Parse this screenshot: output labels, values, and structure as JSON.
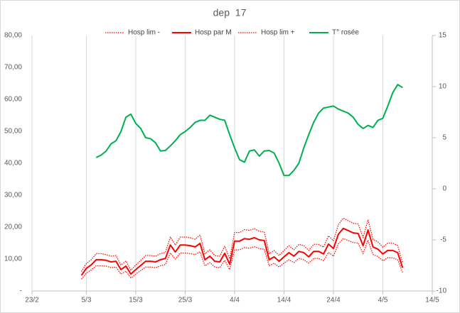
{
  "chart_data": {
    "type": "line",
    "title": "dep  17",
    "x": [
      "4/3",
      "5/3",
      "6/3",
      "7/3",
      "8/3",
      "9/3",
      "10/3",
      "11/3",
      "12/3",
      "13/3",
      "14/3",
      "15/3",
      "16/3",
      "17/3",
      "18/3",
      "19/3",
      "20/3",
      "21/3",
      "22/3",
      "23/3",
      "24/3",
      "25/3",
      "26/3",
      "27/3",
      "28/3",
      "29/3",
      "30/3",
      "31/3",
      "1/4",
      "2/4",
      "3/4",
      "4/4",
      "5/4",
      "6/4",
      "7/4",
      "8/4",
      "9/4",
      "10/4",
      "11/4",
      "12/4",
      "13/4",
      "14/4",
      "15/4",
      "16/4",
      "17/4",
      "18/4",
      "19/4",
      "20/4",
      "21/4",
      "22/4",
      "23/4",
      "24/4",
      "25/4",
      "26/4",
      "27/4",
      "28/4",
      "29/4",
      "30/4",
      "1/5",
      "2/5",
      "3/5",
      "4/5",
      "5/5",
      "6/5",
      "7/5",
      "8/5"
    ],
    "xlim": [
      "23/2",
      "14/5"
    ],
    "xticks": [
      "23/2",
      "5/3",
      "15/3",
      "25/3",
      "4/4",
      "14/4",
      "24/4",
      "4/5",
      "14/5"
    ],
    "ylim": [
      0,
      80
    ],
    "yticks": [
      {
        "value": 0,
        "label": "-"
      },
      {
        "value": 10,
        "label": "10,00"
      },
      {
        "value": 20,
        "label": "20,00"
      },
      {
        "value": 30,
        "label": "30,00"
      },
      {
        "value": 40,
        "label": "40,00"
      },
      {
        "value": 50,
        "label": "50,00"
      },
      {
        "value": 60,
        "label": "60,00"
      },
      {
        "value": 70,
        "label": "70,00"
      },
      {
        "value": 80,
        "label": "80,00"
      }
    ],
    "y2lim": [
      -10,
      15
    ],
    "y2ticks": [
      -10,
      -5,
      0,
      5,
      10,
      15
    ],
    "grid": "x",
    "legend": "top",
    "series": [
      {
        "name": "Hosp lim -",
        "color": "#ff0000",
        "dash": "dotted",
        "values": [
          3.7,
          5.6,
          6.6,
          7.9,
          7.9,
          7.8,
          7.3,
          7.5,
          5.3,
          6.2,
          4.1,
          5.3,
          6.4,
          7.5,
          7.5,
          7.3,
          7.9,
          8.3,
          11.9,
          10.0,
          11.9,
          11.9,
          11.7,
          11.4,
          12.3,
          7.9,
          8.9,
          7.5,
          7.3,
          9.6,
          6.7,
          12.9,
          12.9,
          13.6,
          13.4,
          13.9,
          13.3,
          13.1,
          7.9,
          8.7,
          7.5,
          8.7,
          9.8,
          8.9,
          10.2,
          9.8,
          8.7,
          10.2,
          10.2,
          9.5,
          12.1,
          10.9,
          14.8,
          16.4,
          15.8,
          15.2,
          15.0,
          11.7,
          15.9,
          11.4,
          10.8,
          9.5,
          10.4,
          10.4,
          9.8,
          5.8
        ]
      },
      {
        "name": "Hosp par M",
        "color": "#ff0000",
        "dash": "solid",
        "values": [
          4.9,
          7.1,
          8.2,
          9.8,
          9.8,
          9.6,
          9.1,
          9.3,
          6.7,
          7.8,
          5.3,
          6.7,
          8.0,
          9.3,
          9.3,
          9.1,
          9.8,
          10.2,
          14.4,
          12.2,
          14.4,
          14.4,
          14.2,
          13.8,
          14.9,
          9.8,
          10.9,
          9.3,
          9.1,
          11.8,
          8.4,
          15.6,
          15.6,
          16.4,
          16.2,
          16.7,
          16.0,
          15.8,
          9.8,
          10.7,
          9.3,
          10.7,
          12.0,
          10.9,
          12.4,
          12.0,
          10.7,
          12.4,
          12.4,
          11.6,
          14.7,
          13.3,
          17.8,
          19.6,
          18.9,
          18.2,
          18.0,
          14.2,
          19.1,
          13.8,
          13.1,
          11.6,
          12.7,
          12.7,
          12.0,
          7.3
        ]
      },
      {
        "name": "Hosp lim +",
        "color": "#ff0000",
        "dash": "dotted",
        "values": [
          6.1,
          8.6,
          9.8,
          11.7,
          11.7,
          11.4,
          10.9,
          11.1,
          8.1,
          9.4,
          6.5,
          8.1,
          9.6,
          11.1,
          11.1,
          10.9,
          11.7,
          12.1,
          16.9,
          14.4,
          16.9,
          16.9,
          16.7,
          16.2,
          17.5,
          11.7,
          12.9,
          11.1,
          10.9,
          14.0,
          10.1,
          18.3,
          18.3,
          19.2,
          19.0,
          19.5,
          18.7,
          18.5,
          11.7,
          12.7,
          11.1,
          12.7,
          14.2,
          12.9,
          14.6,
          14.2,
          12.7,
          14.6,
          14.6,
          13.7,
          17.3,
          15.7,
          20.8,
          22.8,
          22.0,
          21.2,
          21.0,
          16.7,
          22.3,
          16.2,
          15.4,
          13.7,
          15.0,
          15.0,
          14.2,
          8.8
        ]
      },
      {
        "name": "T° rosée",
        "color": "#00b050",
        "dash": "solid",
        "axis": "y2",
        "values": [
          null,
          null,
          null,
          3.06,
          3.3,
          3.7,
          4.4,
          4.7,
          5.6,
          7.0,
          7.3,
          6.4,
          5.9,
          5.0,
          4.9,
          4.5,
          3.7,
          3.75,
          4.2,
          4.7,
          5.3,
          5.6,
          6.0,
          6.5,
          6.7,
          6.7,
          7.2,
          7.0,
          6.8,
          6.7,
          5.3,
          4.0,
          2.85,
          2.6,
          3.7,
          3.8,
          3.2,
          3.7,
          3.75,
          3.5,
          2.5,
          1.3,
          1.3,
          1.8,
          2.5,
          4.0,
          5.3,
          6.5,
          7.4,
          7.9,
          8.0,
          8.1,
          7.8,
          7.6,
          7.4,
          7.0,
          6.3,
          5.9,
          6.2,
          6.0,
          6.7,
          6.9,
          8.1,
          9.4,
          10.2,
          9.9
        ]
      }
    ]
  }
}
